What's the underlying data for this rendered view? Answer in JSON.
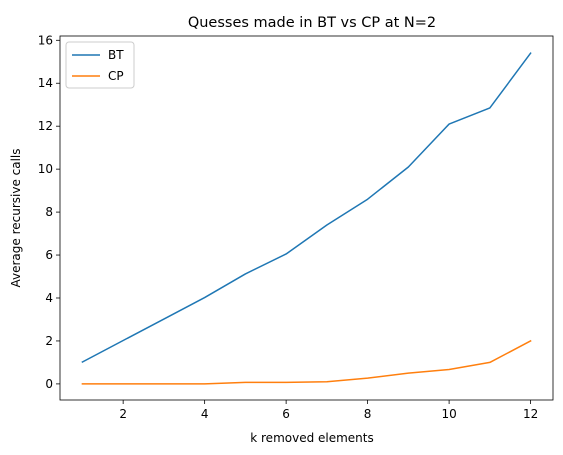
{
  "chart_data": {
    "type": "line",
    "title": "Quesses made in BT vs CP at N=2",
    "xlabel": "k removed elements",
    "ylabel": "Average recursive calls",
    "x": [
      1,
      2,
      3,
      4,
      5,
      6,
      7,
      8,
      9,
      10,
      11,
      12
    ],
    "xlim": [
      0.45,
      12.55
    ],
    "ylim": [
      -0.75,
      16.2
    ],
    "xticks": [
      2,
      4,
      6,
      8,
      10,
      12
    ],
    "yticks": [
      0,
      2,
      4,
      6,
      8,
      10,
      12,
      14,
      16
    ],
    "grid": false,
    "legend_position": "upper-left",
    "series": [
      {
        "name": "BT",
        "color": "#1f77b4",
        "values": [
          1.02,
          2.02,
          3.02,
          4.02,
          5.12,
          6.05,
          7.4,
          8.6,
          10.1,
          12.1,
          12.85,
          15.4
        ]
      },
      {
        "name": "CP",
        "color": "#ff7f0e",
        "values": [
          0.0,
          0.0,
          0.0,
          0.0,
          0.07,
          0.07,
          0.1,
          0.27,
          0.5,
          0.67,
          1.0,
          2.0
        ]
      }
    ]
  }
}
